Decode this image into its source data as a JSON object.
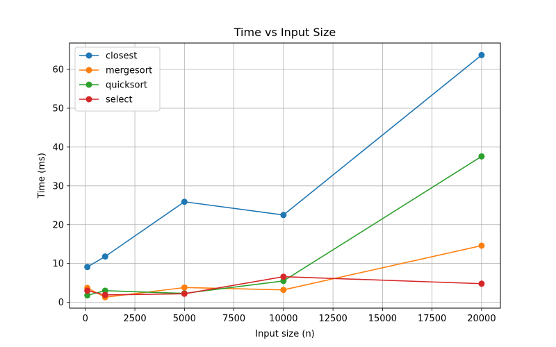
{
  "chart_data": {
    "type": "line",
    "title": "Time vs Input Size",
    "xlabel": "Input size (n)",
    "ylabel": "Time (ms)",
    "xlim": [
      -800,
      20950
    ],
    "ylim": [
      -1.5,
      66.8
    ],
    "xticks": [
      0,
      2500,
      5000,
      7500,
      10000,
      12500,
      15000,
      17500,
      20000
    ],
    "yticks": [
      0,
      10,
      20,
      30,
      40,
      50,
      60
    ],
    "grid": true,
    "legend_position": "top-left",
    "x": [
      100,
      1000,
      5000,
      10000,
      20000
    ],
    "series": [
      {
        "name": "closest",
        "color": "#1f77b4",
        "values": [
          9.1,
          11.8,
          25.9,
          22.5,
          63.7
        ]
      },
      {
        "name": "mergesort",
        "color": "#ff7f0e",
        "values": [
          3.7,
          1.3,
          3.8,
          3.2,
          14.6
        ]
      },
      {
        "name": "quicksort",
        "color": "#2ca02c",
        "values": [
          1.8,
          3.0,
          2.3,
          5.5,
          37.6
        ]
      },
      {
        "name": "select",
        "color": "#d62728",
        "values": [
          3.0,
          1.9,
          2.2,
          6.6,
          4.8
        ]
      }
    ]
  }
}
